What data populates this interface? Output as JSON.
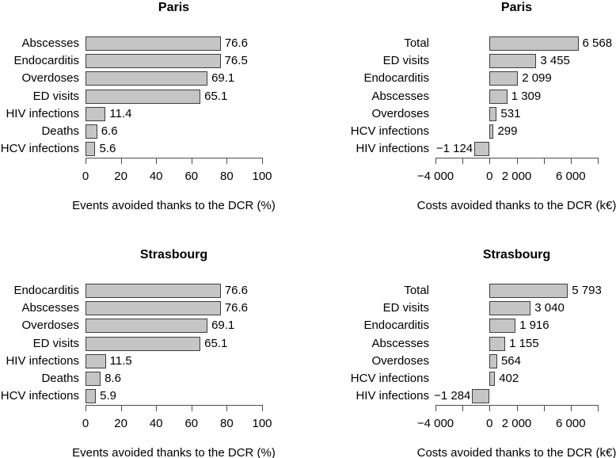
{
  "colors": {
    "bar_fill": "#c5c5c5",
    "bar_border": "#3d3d3d",
    "axis": "#4d4d4d",
    "text": "#000000",
    "background": "#ffffff"
  },
  "chart_data": [
    {
      "type": "bar",
      "orientation": "horizontal",
      "title": "Paris",
      "categories": [
        "Abscesses",
        "Endocarditis",
        "Overdoses",
        "ED visits",
        "HIV infections",
        "Deaths",
        "HCV infections"
      ],
      "values": [
        76.6,
        76.5,
        69.1,
        65.1,
        11.4,
        6.6,
        5.6
      ],
      "value_labels": [
        "76.6",
        "76.5",
        "69.1",
        "65.1",
        "11.4",
        "6.6",
        "5.6"
      ],
      "xlabel": "Events avoided thanks to the DCR (%)",
      "xlim": [
        0,
        100
      ],
      "ticks": [
        0,
        20,
        40,
        60,
        80,
        100
      ],
      "tick_labels": [
        "0",
        "20",
        "40",
        "60",
        "80",
        "100"
      ],
      "grid": false,
      "legend": "none"
    },
    {
      "type": "bar",
      "orientation": "horizontal",
      "title": "Paris",
      "categories": [
        "Total",
        "ED visits",
        "Endocarditis",
        "Abscesses",
        "Overdoses",
        "HCV infections",
        "HIV infections"
      ],
      "values": [
        6568,
        3455,
        2099,
        1309,
        531,
        299,
        -1124
      ],
      "value_labels": [
        "6 568",
        "3 455",
        "2 099",
        "1 309",
        "531",
        "299",
        "−1 124"
      ],
      "xlabel": "Costs avoided thanks to the DCR (k€)",
      "xlim": [
        -4000,
        8000
      ],
      "ticks": [
        -4000,
        -2000,
        0,
        2000,
        4000,
        6000,
        8000
      ],
      "tick_labels": [
        "−4 000",
        "",
        "0",
        "2 000",
        "",
        "6 000",
        ""
      ],
      "grid": false,
      "legend": "none"
    },
    {
      "type": "bar",
      "orientation": "horizontal",
      "title": "Strasbourg",
      "categories": [
        "Endocarditis",
        "Abscesses",
        "Overdoses",
        "ED visits",
        "HIV infections",
        "Deaths",
        "HCV infections"
      ],
      "values": [
        76.6,
        76.6,
        69.1,
        65.1,
        11.5,
        8.6,
        5.9
      ],
      "value_labels": [
        "76.6",
        "76.6",
        "69.1",
        "65.1",
        "11.5",
        "8.6",
        "5.9"
      ],
      "xlabel": "Events avoided thanks to the DCR (%)",
      "xlim": [
        0,
        100
      ],
      "ticks": [
        0,
        20,
        40,
        60,
        80,
        100
      ],
      "tick_labels": [
        "0",
        "20",
        "40",
        "60",
        "80",
        "100"
      ],
      "grid": false,
      "legend": "none"
    },
    {
      "type": "bar",
      "orientation": "horizontal",
      "title": "Strasbourg",
      "categories": [
        "Total",
        "ED visits",
        "Endocarditis",
        "Abscesses",
        "Overdoses",
        "HCV infections",
        "HIV infections"
      ],
      "values": [
        5793,
        3040,
        1916,
        1155,
        564,
        402,
        -1284
      ],
      "value_labels": [
        "5 793",
        "3 040",
        "1 916",
        "1 155",
        "564",
        "402",
        "−1 284"
      ],
      "xlabel": "Costs avoided thanks to the DCR (k€)",
      "xlim": [
        -4000,
        8000
      ],
      "ticks": [
        -4000,
        -2000,
        0,
        2000,
        4000,
        6000,
        8000
      ],
      "tick_labels": [
        "−4 000",
        "",
        "0",
        "2 000",
        "",
        "6 000",
        ""
      ],
      "grid": false,
      "legend": "none"
    }
  ]
}
